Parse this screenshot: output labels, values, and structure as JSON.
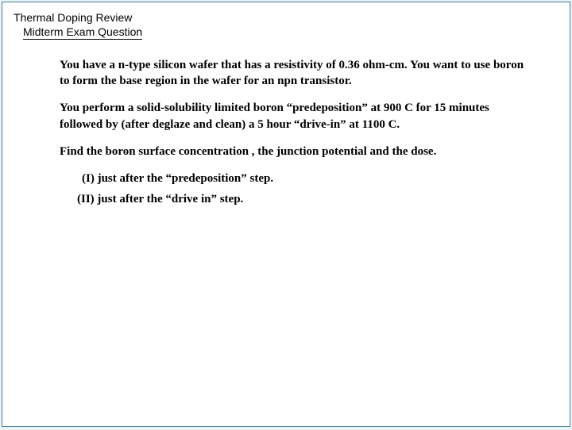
{
  "header": {
    "title": "Thermal Doping Review",
    "subtitle": "Midterm Exam Question"
  },
  "body": {
    "p1": "You have a n-type silicon wafer that has a resistivity of 0.36 ohm-cm.   You want to use boron to form the base region in the wafer for an npn transistor.",
    "p2": "You perform a solid-solubility limited boron “predeposition” at 900 C for 15 minutes followed by (after deglaze and clean) a 5 hour “drive-in” at 1100 C.",
    "p3": "Find the boron surface concentration , the junction potential and the dose.",
    "items": {
      "i1": "(I) just after the “predeposition” step.",
      "i2": "(II) just after the “drive in” step."
    }
  },
  "style": {
    "background_color": "#e8f4f8",
    "page_color": "#ffffff",
    "border_color": "#4a7a9a",
    "text_color": "#000000",
    "title_font": "Verdana",
    "title_fontsize_pt": 14,
    "body_font": "Times New Roman",
    "body_fontsize_pt": 15,
    "body_fontweight": "bold"
  }
}
